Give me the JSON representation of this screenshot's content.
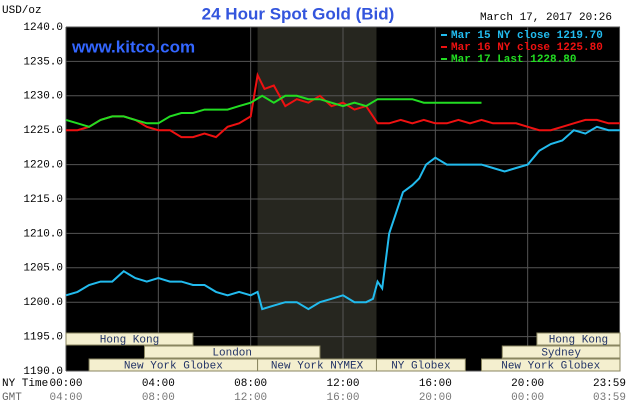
{
  "chart_data": {
    "type": "line",
    "title": "24 Hour Spot Gold (Bid)",
    "unit_label": "USD/oz",
    "timestamp": "March 17, 2017 20:26",
    "site": "www.kitco.com",
    "x_axis_label": "NY Time",
    "x2_axis_label": "GMT",
    "xlim": [
      0,
      24
    ],
    "xticks": [
      {
        "value": 0,
        "label": "00:00"
      },
      {
        "value": 4,
        "label": "04:00"
      },
      {
        "value": 8,
        "label": "08:00"
      },
      {
        "value": 12,
        "label": "12:00"
      },
      {
        "value": 16,
        "label": "16:00"
      },
      {
        "value": 20,
        "label": "20:00"
      },
      {
        "value": 23.98,
        "label": "23:59"
      }
    ],
    "x2ticks": [
      {
        "value": 0,
        "label": "04:00"
      },
      {
        "value": 4,
        "label": "08:00"
      },
      {
        "value": 8,
        "label": "12:00"
      },
      {
        "value": 12,
        "label": "16:00"
      },
      {
        "value": 16,
        "label": "20:00"
      },
      {
        "value": 20,
        "label": "00:00"
      },
      {
        "value": 23.98,
        "label": "03:59"
      }
    ],
    "ylim": [
      1190,
      1240
    ],
    "yticks": [
      {
        "value": 1190,
        "label": "1190.0"
      },
      {
        "value": 1195,
        "label": "1195.0"
      },
      {
        "value": 1200,
        "label": "1200.0"
      },
      {
        "value": 1205,
        "label": "1205.0"
      },
      {
        "value": 1210,
        "label": "1210.0"
      },
      {
        "value": 1215,
        "label": "1215.0"
      },
      {
        "value": 1220,
        "label": "1220.0"
      },
      {
        "value": 1225,
        "label": "1225.0"
      },
      {
        "value": 1230,
        "label": "1230.0"
      },
      {
        "value": 1235,
        "label": "1235.0"
      },
      {
        "value": 1240,
        "label": "1240.0"
      }
    ],
    "grid": true,
    "shaded_range": [
      8.3,
      13.45
    ],
    "series": [
      {
        "name": "Mar 15 NY close 1219.70",
        "color": "#22bbee",
        "x": [
          0,
          0.5,
          1,
          1.5,
          2,
          2.5,
          3,
          3.5,
          4,
          4.5,
          5,
          5.5,
          6,
          6.5,
          7,
          7.5,
          8,
          8.3,
          8.5,
          9,
          9.5,
          10,
          10.5,
          11,
          11.5,
          12,
          12.5,
          13,
          13.3,
          13.5,
          13.7,
          14,
          14.3,
          14.6,
          15,
          15.3,
          15.6,
          16,
          16.5,
          17,
          17.5,
          18,
          18.5,
          19,
          19.5,
          20,
          20.5,
          21,
          21.5,
          22,
          22.5,
          23,
          23.5,
          24
        ],
        "values": [
          1201,
          1201.5,
          1202.5,
          1203,
          1203,
          1204.5,
          1203.5,
          1203,
          1203.5,
          1203,
          1203,
          1202.5,
          1202.5,
          1201.5,
          1201,
          1201.5,
          1201,
          1201.5,
          1199,
          1199.5,
          1200,
          1200,
          1199,
          1200,
          1200.5,
          1201,
          1200,
          1200,
          1200.5,
          1203,
          1202,
          1210,
          1213,
          1216,
          1217,
          1218,
          1220,
          1221,
          1220,
          1220,
          1220,
          1220,
          1219.5,
          1219,
          1219.5,
          1220,
          1222,
          1223,
          1223.5,
          1225,
          1224.5,
          1225.5,
          1225,
          1225
        ]
      },
      {
        "name": "Mar 16 NY close 1225.80",
        "color": "#ee1111",
        "x": [
          0,
          0.5,
          1,
          1.5,
          2,
          2.5,
          3,
          3.5,
          4,
          4.5,
          5,
          5.5,
          6,
          6.5,
          7,
          7.5,
          8,
          8.3,
          8.6,
          9,
          9.5,
          10,
          10.5,
          11,
          11.5,
          12,
          12.5,
          13,
          13.5,
          14,
          14.5,
          15,
          15.5,
          16,
          16.5,
          17,
          17.5,
          18,
          18.5,
          19,
          19.5,
          20,
          20.5,
          21,
          21.5,
          22,
          22.5,
          23,
          23.5,
          24
        ],
        "values": [
          1225,
          1225,
          1225.5,
          1226.5,
          1227,
          1227,
          1226.5,
          1225.5,
          1225,
          1225,
          1224,
          1224,
          1224.5,
          1224,
          1225.5,
          1226,
          1227,
          1233,
          1231,
          1231.5,
          1228.5,
          1229.5,
          1229,
          1230,
          1228.5,
          1229,
          1228,
          1228.5,
          1226,
          1226,
          1226.5,
          1226,
          1226.5,
          1226,
          1226,
          1226.5,
          1226,
          1226.5,
          1226,
          1226,
          1226,
          1225.5,
          1225,
          1225,
          1225.5,
          1226,
          1226.5,
          1226.5,
          1226,
          1226
        ]
      },
      {
        "name": "Mar 17 Last 1228.80",
        "color": "#22dd22",
        "x": [
          0,
          0.5,
          1,
          1.5,
          2,
          2.5,
          3,
          3.5,
          4,
          4.5,
          5,
          5.5,
          6,
          6.5,
          7,
          7.5,
          8,
          8.5,
          9,
          9.5,
          10,
          10.5,
          11,
          11.5,
          12,
          12.5,
          13,
          13.5,
          14,
          14.5,
          15,
          15.5,
          16,
          16.5,
          17,
          17.5,
          18
        ],
        "values": [
          1226.5,
          1226,
          1225.5,
          1226.5,
          1227,
          1227,
          1226.5,
          1226,
          1226,
          1227,
          1227.5,
          1227.5,
          1228,
          1228,
          1228,
          1228.5,
          1229,
          1230,
          1229,
          1230,
          1230,
          1229.5,
          1229.5,
          1229,
          1228.5,
          1229,
          1228.5,
          1229.5,
          1229.5,
          1229.5,
          1229.5,
          1229,
          1229,
          1229,
          1229,
          1229,
          1229
        ]
      }
    ],
    "session_rows": [
      [
        {
          "label": "Hong Kong",
          "start": 0,
          "end": 5.5
        },
        {
          "label": "Hong Kong",
          "start": 20.4,
          "end": 24
        }
      ],
      [
        {
          "label": "London",
          "start": 3.4,
          "end": 11
        },
        {
          "label": "Sydney",
          "start": 18.9,
          "end": 24
        }
      ],
      [
        {
          "label": "New York Globex",
          "start": 1,
          "end": 8.3
        },
        {
          "label": "New York NYMEX",
          "start": 8.3,
          "end": 13.45
        },
        {
          "label": "NY Globex",
          "start": 13.45,
          "end": 17.3
        },
        {
          "label": "New York Globex",
          "start": 18,
          "end": 24
        }
      ]
    ]
  }
}
